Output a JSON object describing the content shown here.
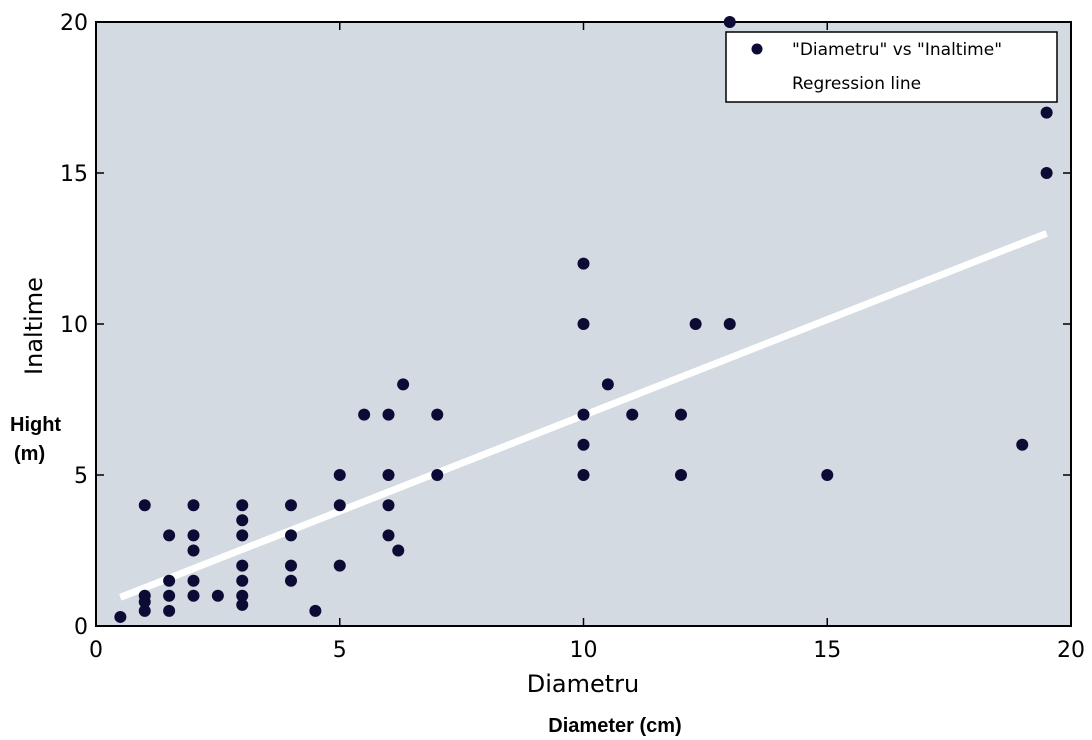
{
  "chart_data": {
    "type": "scatter",
    "xlabel": "Diametru",
    "ylabel": "Inaltime",
    "xlim": [
      0,
      20
    ],
    "ylim": [
      0,
      20
    ],
    "xticks": [
      0,
      5,
      10,
      15,
      20
    ],
    "yticks": [
      0,
      5,
      10,
      15,
      20
    ],
    "grid": false,
    "legend_position": "top-right",
    "background_color": "#d3dae2",
    "point_color": "#0b0b35",
    "line_color": "#ffffff",
    "series": [
      {
        "name": "\"Diametru\" vs \"Inaltime\"",
        "points": [
          [
            0.5,
            0.3
          ],
          [
            1,
            0.5
          ],
          [
            1,
            0.8
          ],
          [
            1,
            1
          ],
          [
            1,
            4
          ],
          [
            1.5,
            0.5
          ],
          [
            1.5,
            1
          ],
          [
            1.5,
            1.5
          ],
          [
            1.5,
            3
          ],
          [
            2,
            1
          ],
          [
            2,
            1.5
          ],
          [
            2,
            2.5
          ],
          [
            2,
            3
          ],
          [
            2,
            4
          ],
          [
            2.5,
            1
          ],
          [
            3,
            0.7
          ],
          [
            3,
            1
          ],
          [
            3,
            1.5
          ],
          [
            3,
            2
          ],
          [
            3,
            3
          ],
          [
            3,
            3.5
          ],
          [
            3,
            4
          ],
          [
            4,
            1.5
          ],
          [
            4,
            2
          ],
          [
            4,
            3
          ],
          [
            4,
            4
          ],
          [
            4.5,
            0.5
          ],
          [
            5,
            2
          ],
          [
            5,
            4
          ],
          [
            5,
            5
          ],
          [
            5.5,
            7
          ],
          [
            6,
            3
          ],
          [
            6,
            4
          ],
          [
            6,
            5
          ],
          [
            6,
            7
          ],
          [
            6.2,
            2.5
          ],
          [
            6.3,
            8
          ],
          [
            7,
            5
          ],
          [
            7,
            7
          ],
          [
            10,
            5
          ],
          [
            10,
            6
          ],
          [
            10,
            7
          ],
          [
            10,
            10
          ],
          [
            10,
            12
          ],
          [
            10.5,
            8
          ],
          [
            11,
            7
          ],
          [
            12,
            5
          ],
          [
            12,
            7
          ],
          [
            12.3,
            10
          ],
          [
            13,
            10
          ],
          [
            13,
            20
          ],
          [
            15,
            5
          ],
          [
            19,
            6
          ],
          [
            19.5,
            15
          ],
          [
            19.5,
            17
          ]
        ]
      },
      {
        "name": "Regression line",
        "line": [
          [
            0.5,
            0.95
          ],
          [
            19.5,
            13
          ]
        ]
      }
    ],
    "annotations": {
      "ylabel_en": "Hight",
      "ylabel_en_unit": "(m)",
      "xlabel_en": "Diameter  (cm)"
    }
  }
}
